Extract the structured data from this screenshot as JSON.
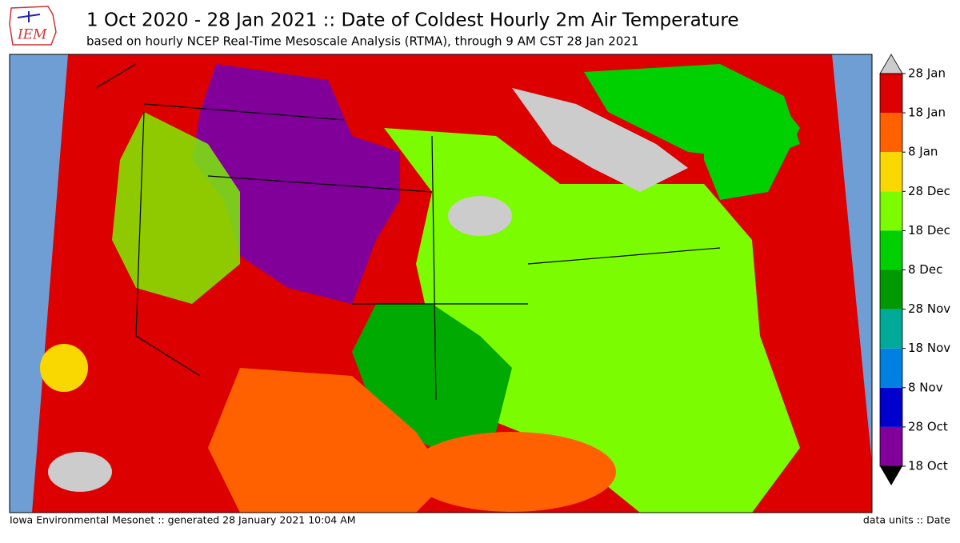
{
  "header": {
    "logo": "IEM",
    "title": "1 Oct 2020 - 28 Jan 2021 :: Date of Coldest Hourly 2m Air Temperature",
    "subtitle": "based on hourly NCEP Real-Time Mesoscale Analysis (RTMA), through 9 AM CST 28 Jan 2021"
  },
  "colorbar": {
    "labels": [
      "28 Jan",
      "18 Jan",
      "8 Jan",
      "28 Dec",
      "18 Dec",
      "8 Dec",
      "28 Nov",
      "18 Nov",
      "8 Nov",
      "28 Oct",
      "18 Oct"
    ],
    "colors": [
      "#dd0000",
      "#ff6000",
      "#f8d800",
      "#7cfc00",
      "#00d000",
      "#009900",
      "#00aa99",
      "#0080e0",
      "#0000cc",
      "#800099"
    ],
    "over_color": "#cccccc",
    "under_color": "#000000"
  },
  "footer": {
    "left": "Iowa Environmental Mesonet :: generated 28 January 2021 10:04 AM",
    "right": "data units :: Date"
  }
}
